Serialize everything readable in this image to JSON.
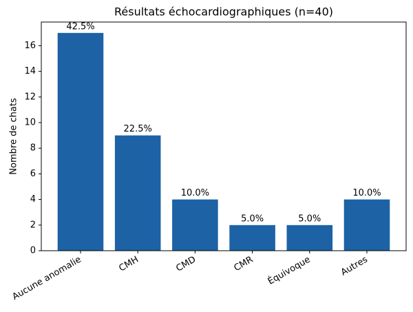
{
  "chart_data": {
    "type": "bar",
    "title": "Résultats échocardiographiques (n=40)",
    "y_label": "Nombre de chats",
    "categories": [
      "Aucune anomalie",
      "CMH",
      "CMD",
      "CMR",
      "Équivoque",
      "Autres"
    ],
    "values": [
      17,
      9,
      4,
      2,
      2,
      4
    ],
    "value_labels": [
      "42.5%",
      "22.5%",
      "10.0%",
      "5.0%",
      "5.0%",
      "10.0%"
    ],
    "color": "#1c62a4",
    "ylim": [
      0,
      17.85
    ],
    "yticks": [
      0,
      2,
      4,
      6,
      8,
      10,
      12,
      14,
      16
    ],
    "grid": false
  }
}
